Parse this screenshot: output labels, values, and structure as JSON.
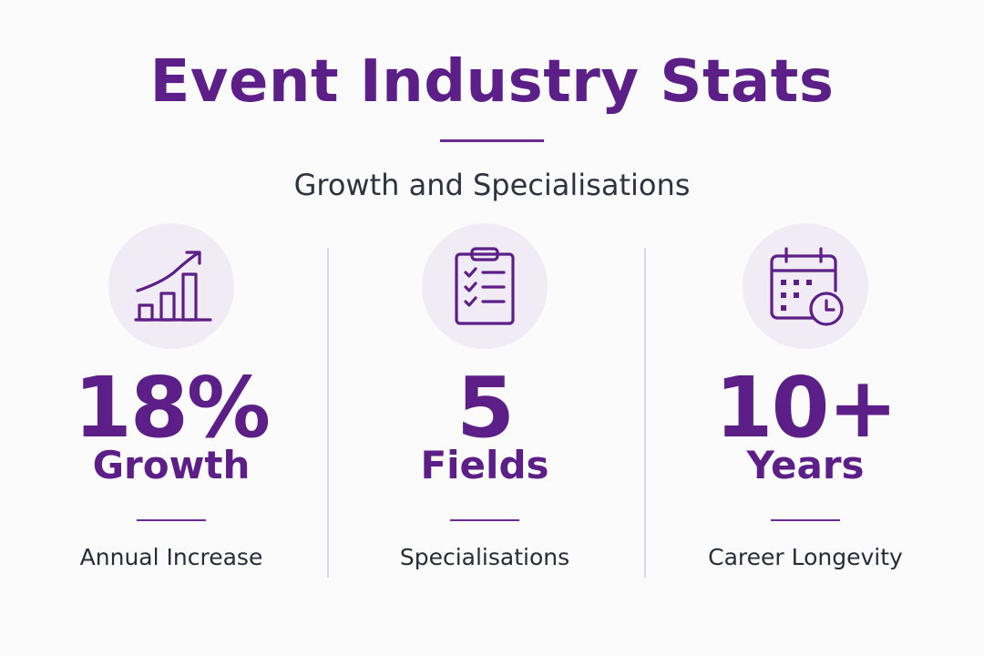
{
  "header": {
    "title": "Event Industry Stats",
    "subtitle": "Growth and Specialisations"
  },
  "colors": {
    "accent": "#5c1e87",
    "icon_background": "#f1ebf6",
    "divider": "#e3d3ea",
    "text": "#262d38"
  },
  "stats": [
    {
      "icon": "growth-chart-icon",
      "value": "18%",
      "label": "Growth",
      "caption": "Annual Increase"
    },
    {
      "icon": "clipboard-checklist-icon",
      "value": "5",
      "label": "Fields",
      "caption": "Specialisations"
    },
    {
      "icon": "calendar-clock-icon",
      "value": "10+",
      "label": "Years",
      "caption": "Career Longevity"
    }
  ]
}
